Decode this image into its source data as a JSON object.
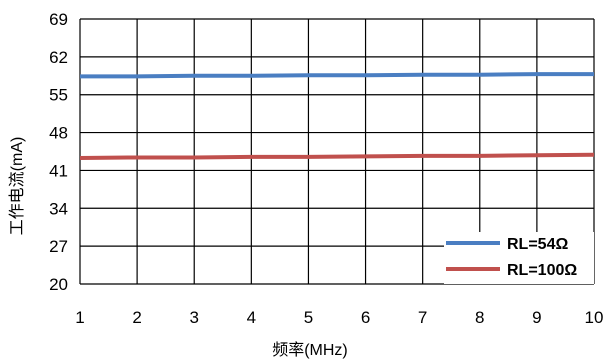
{
  "chart_data": {
    "type": "line",
    "xlabel": "频率(MHz)",
    "ylabel": "工作电流(mA)",
    "xlim": [
      1,
      10
    ],
    "ylim": [
      20,
      69
    ],
    "x_ticks": [
      "1",
      "2",
      "3",
      "4",
      "5",
      "6",
      "7",
      "8",
      "9",
      "10"
    ],
    "y_ticks": [
      "20",
      "27",
      "34",
      "41",
      "48",
      "55",
      "62",
      "69"
    ],
    "grid": true,
    "legend_position": "bottom-right",
    "x": [
      1,
      2,
      3,
      4,
      5,
      6,
      7,
      8,
      9,
      10
    ],
    "series": [
      {
        "name": "RL=54Ω",
        "color": "#4A7EC2",
        "values": [
          58.4,
          58.4,
          58.5,
          58.5,
          58.6,
          58.6,
          58.7,
          58.7,
          58.8,
          58.8
        ]
      },
      {
        "name": "RL=100Ω",
        "color": "#C0504D",
        "values": [
          43.3,
          43.4,
          43.4,
          43.5,
          43.5,
          43.6,
          43.7,
          43.7,
          43.8,
          43.9
        ]
      }
    ]
  }
}
